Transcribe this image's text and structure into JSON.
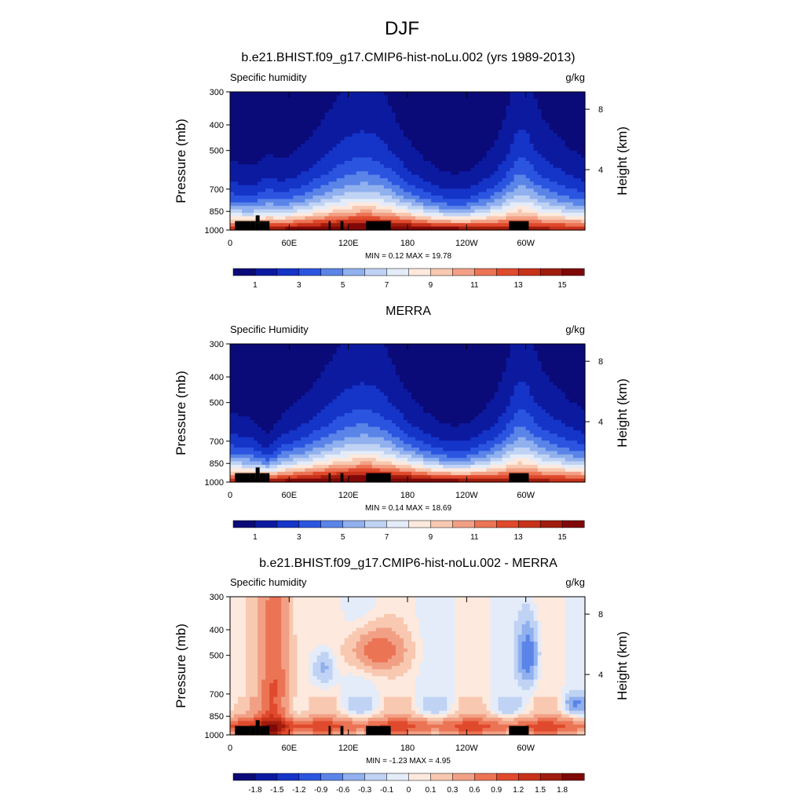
{
  "main_title": "DJF",
  "common": {
    "x_ticks": [
      {
        "lon": 0,
        "label": "0"
      },
      {
        "lon": 60,
        "label": "60E"
      },
      {
        "lon": 120,
        "label": "120E"
      },
      {
        "lon": 180,
        "label": "180"
      },
      {
        "lon": 240,
        "label": "120W"
      },
      {
        "lon": 300,
        "label": "60W"
      }
    ],
    "p_ticks": [
      {
        "p": 300,
        "label": "300"
      },
      {
        "p": 400,
        "label": "400"
      },
      {
        "p": 500,
        "label": "500"
      },
      {
        "p": 700,
        "label": "700"
      },
      {
        "p": 850,
        "label": "850"
      },
      {
        "p": 1000,
        "label": "1000"
      }
    ],
    "height_ticks": [
      {
        "km": 8,
        "label": "8"
      },
      {
        "km": 4,
        "label": "4"
      }
    ],
    "ylabel": "Pressure (mb)",
    "y2label": "Height (km)",
    "abs_colors": [
      "#0a0a78",
      "#0c1aa0",
      "#1534c8",
      "#2b55e0",
      "#5a84e8",
      "#90b0ee",
      "#c0d3f4",
      "#e4ecf9",
      "#fde9de",
      "#f8c8b0",
      "#f2a085",
      "#eb7455",
      "#e04a2c",
      "#c8321a",
      "#a01c0c",
      "#800808"
    ],
    "abs_labels": [
      "1",
      "3",
      "5",
      "7",
      "9",
      "11",
      "13",
      "15"
    ],
    "diff_colors": [
      "#0a0a78",
      "#0c1aa0",
      "#1534c8",
      "#2b55e0",
      "#5a84e8",
      "#90b0ee",
      "#c0d3f4",
      "#e4ecf9",
      "#fde9de",
      "#f8c8b0",
      "#f2a085",
      "#eb7455",
      "#e04a2c",
      "#c8321a",
      "#a01c0c",
      "#800808"
    ],
    "diff_labels": [
      "-1.8",
      "-1.5",
      "-1.2",
      "-0.9",
      "-0.6",
      "-0.3",
      "-0.1",
      "0",
      "0.1",
      "0.3",
      "0.6",
      "0.9",
      "1.2",
      "1.5",
      "1.8"
    ]
  },
  "panels": [
    {
      "title": "b.e21.BHIST.f09_g17.CMIP6-hist-noLu.002 (yrs 1989-2013)",
      "left_label": "Specific humidity",
      "right_label": "g/kg",
      "minmax": "MIN =   0.12  MAX =  19.78",
      "has_height_axis": true,
      "colorbar": "abs",
      "chart_data": {
        "type": "heatmap",
        "variable": "Specific humidity",
        "units": "g/kg",
        "xlim": [
          0,
          360
        ],
        "ylim": [
          1000,
          300
        ],
        "min": 0.12,
        "max": 19.78
      }
    },
    {
      "title": "MERRA",
      "left_label": "Specific Humidity",
      "right_label": "g/kg",
      "minmax": "MIN =   0.14  MAX =  18.69",
      "has_height_axis": true,
      "colorbar": "abs",
      "chart_data": {
        "type": "heatmap",
        "variable": "Specific Humidity",
        "units": "g/kg",
        "xlim": [
          0,
          360
        ],
        "ylim": [
          1000,
          300
        ],
        "min": 0.14,
        "max": 18.69
      }
    },
    {
      "title": "b.e21.BHIST.f09_g17.CMIP6-hist-noLu.002 - MERRA",
      "left_label": "Specific humidity",
      "right_label": "g/kg",
      "minmax": "MIN =  -1.23  MAX =   4.95",
      "has_height_axis": true,
      "colorbar": "diff",
      "chart_data": {
        "type": "heatmap",
        "variable": "Specific humidity",
        "units": "g/kg",
        "xlim": [
          0,
          360
        ],
        "ylim": [
          1000,
          300
        ],
        "min": -1.23,
        "max": 4.95
      }
    }
  ]
}
